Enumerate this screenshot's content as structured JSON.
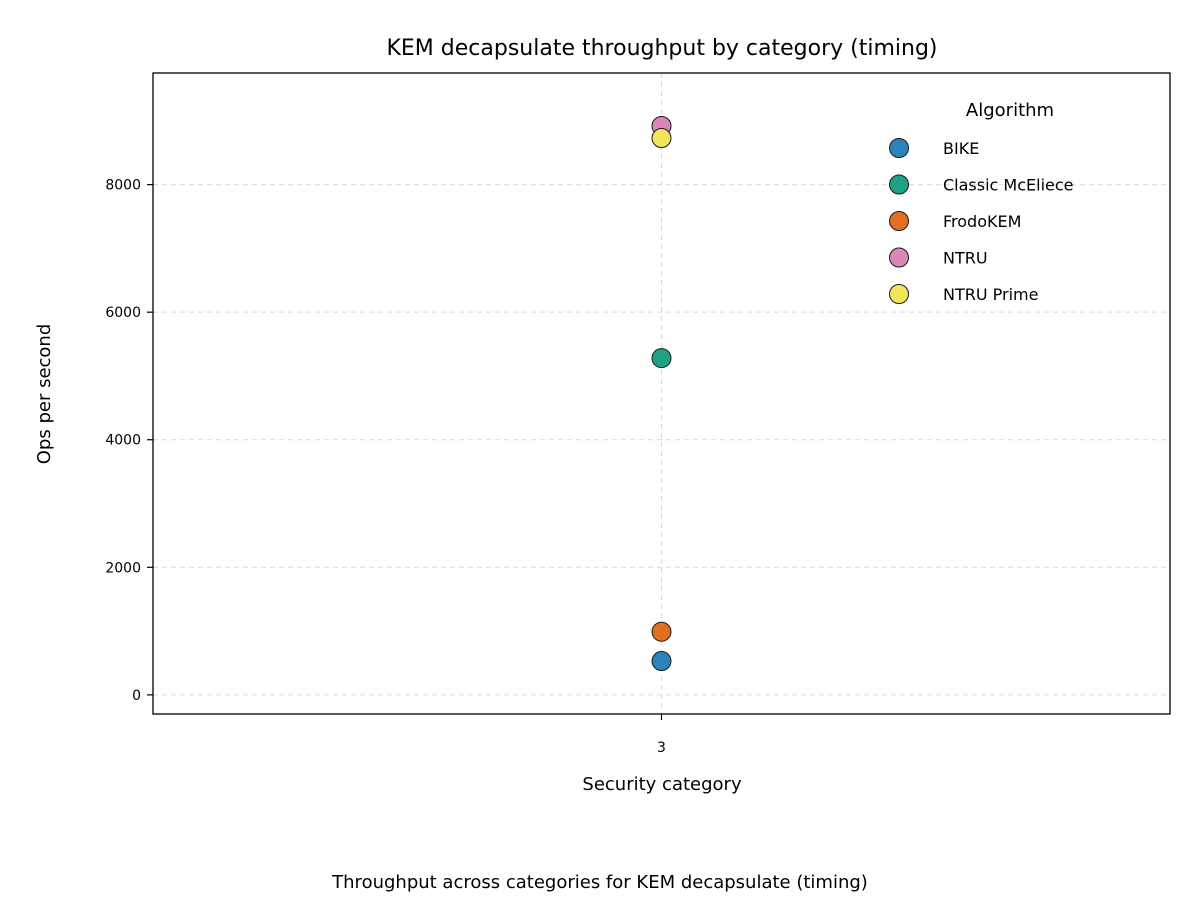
{
  "chart_data": {
    "type": "scatter",
    "title": "KEM decapsulate throughput by category (timing)",
    "xlabel": "Security category",
    "ylabel": "Ops per second",
    "caption": "Throughput across categories for KEM decapsulate (timing)",
    "categories": [
      "3"
    ],
    "ylim": [
      -300,
      9750
    ],
    "yticks": [
      0,
      2000,
      4000,
      6000,
      8000
    ],
    "grid": true,
    "legend": {
      "title": "Algorithm",
      "position": "top-right"
    },
    "series": [
      {
        "name": "BIKE",
        "color": "#2b83ba",
        "points": [
          {
            "x": "3",
            "y": 530
          }
        ]
      },
      {
        "name": "Classic McEliece",
        "color": "#1fa187",
        "points": [
          {
            "x": "3",
            "y": 5280
          }
        ]
      },
      {
        "name": "FrodoKEM",
        "color": "#e07020",
        "points": [
          {
            "x": "3",
            "y": 990
          }
        ]
      },
      {
        "name": "NTRU",
        "color": "#d987b8",
        "points": [
          {
            "x": "3",
            "y": 8920
          }
        ]
      },
      {
        "name": "NTRU Prime",
        "color": "#f2e55c",
        "points": [
          {
            "x": "3",
            "y": 8730
          }
        ]
      }
    ]
  }
}
